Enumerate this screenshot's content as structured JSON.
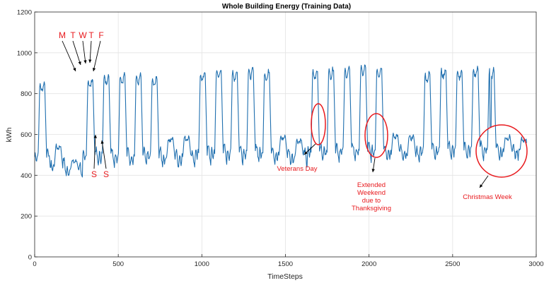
{
  "chart_data": {
    "type": "line",
    "title": "Whole Building Energy (Training Data)",
    "xlabel": "TimeSteps",
    "ylabel": "kWh",
    "xlim": [
      0,
      3000
    ],
    "ylim": [
      0,
      1200
    ],
    "xticks": [
      0,
      500,
      1000,
      1500,
      2000,
      2500,
      3000
    ],
    "yticks": [
      0,
      200,
      400,
      600,
      800,
      1000,
      1200
    ],
    "grid": true,
    "series": [
      {
        "color": "#1f6faf",
        "description_note_free": true,
        "x_start": 0,
        "x_step": 3,
        "days_note": "daily profile per day (96 timesteps per day)",
        "daily_peaks": [
          860,
          545,
          470,
          880,
          900,
          905,
          900,
          885,
          580,
          590,
          915,
          930,
          920,
          930,
          920,
          590,
          575,
          925,
          930,
          935,
          945,
          940,
          600,
          590,
          910,
          930,
          920,
          935,
          925,
          590,
          580,
          920,
          940,
          945,
          945,
          930,
          600,
          585,
          935,
          955,
          960,
          960,
          940,
          600,
          590,
          655,
          925,
          950,
          950,
          940,
          610,
          610,
          975,
          1000,
          995,
          975,
          960,
          620,
          615,
          955,
          975,
          975,
          980,
          955,
          610,
          600,
          940,
          960,
          950,
          640,
          640,
          610,
          605,
          955,
          965,
          970,
          975,
          960,
          620,
          615,
          905,
          935,
          945,
          930,
          600,
          590,
          635,
          640,
          625,
          480,
          470,
          490,
          480,
          470,
          460
        ],
        "daily_troughs": [
          490,
          440,
          420,
          490,
          490,
          490,
          485,
          490,
          480,
          480,
          500,
          505,
          505,
          510,
          505,
          490,
          485,
          510,
          515,
          515,
          515,
          515,
          500,
          495,
          520,
          520,
          520,
          520,
          520,
          510,
          505,
          525,
          525,
          525,
          525,
          525,
          510,
          500,
          530,
          530,
          530,
          530,
          530,
          515,
          505,
          525,
          535,
          535,
          535,
          535,
          520,
          515,
          545,
          545,
          545,
          545,
          545,
          530,
          525,
          545,
          545,
          545,
          545,
          545,
          530,
          525,
          540,
          540,
          540,
          525,
          520,
          515,
          510,
          545,
          545,
          545,
          545,
          545,
          530,
          525,
          535,
          535,
          535,
          535,
          520,
          515,
          485,
          480,
          470,
          400,
          395,
          400,
          400,
          395,
          395
        ]
      }
    ],
    "annotations": [
      {
        "text": "M"
      },
      {
        "text": "T"
      },
      {
        "text": "W"
      },
      {
        "text": "T"
      },
      {
        "text": "F"
      },
      {
        "text": "S"
      },
      {
        "text": "S"
      },
      {
        "text": "Veterans Day"
      },
      {
        "text": "Extended"
      },
      {
        "text": "Weekend"
      },
      {
        "text": "due to"
      },
      {
        "text": "Thanksgiving"
      },
      {
        "text": "Christmas Week"
      }
    ],
    "annotation_color": "#e8191d"
  }
}
